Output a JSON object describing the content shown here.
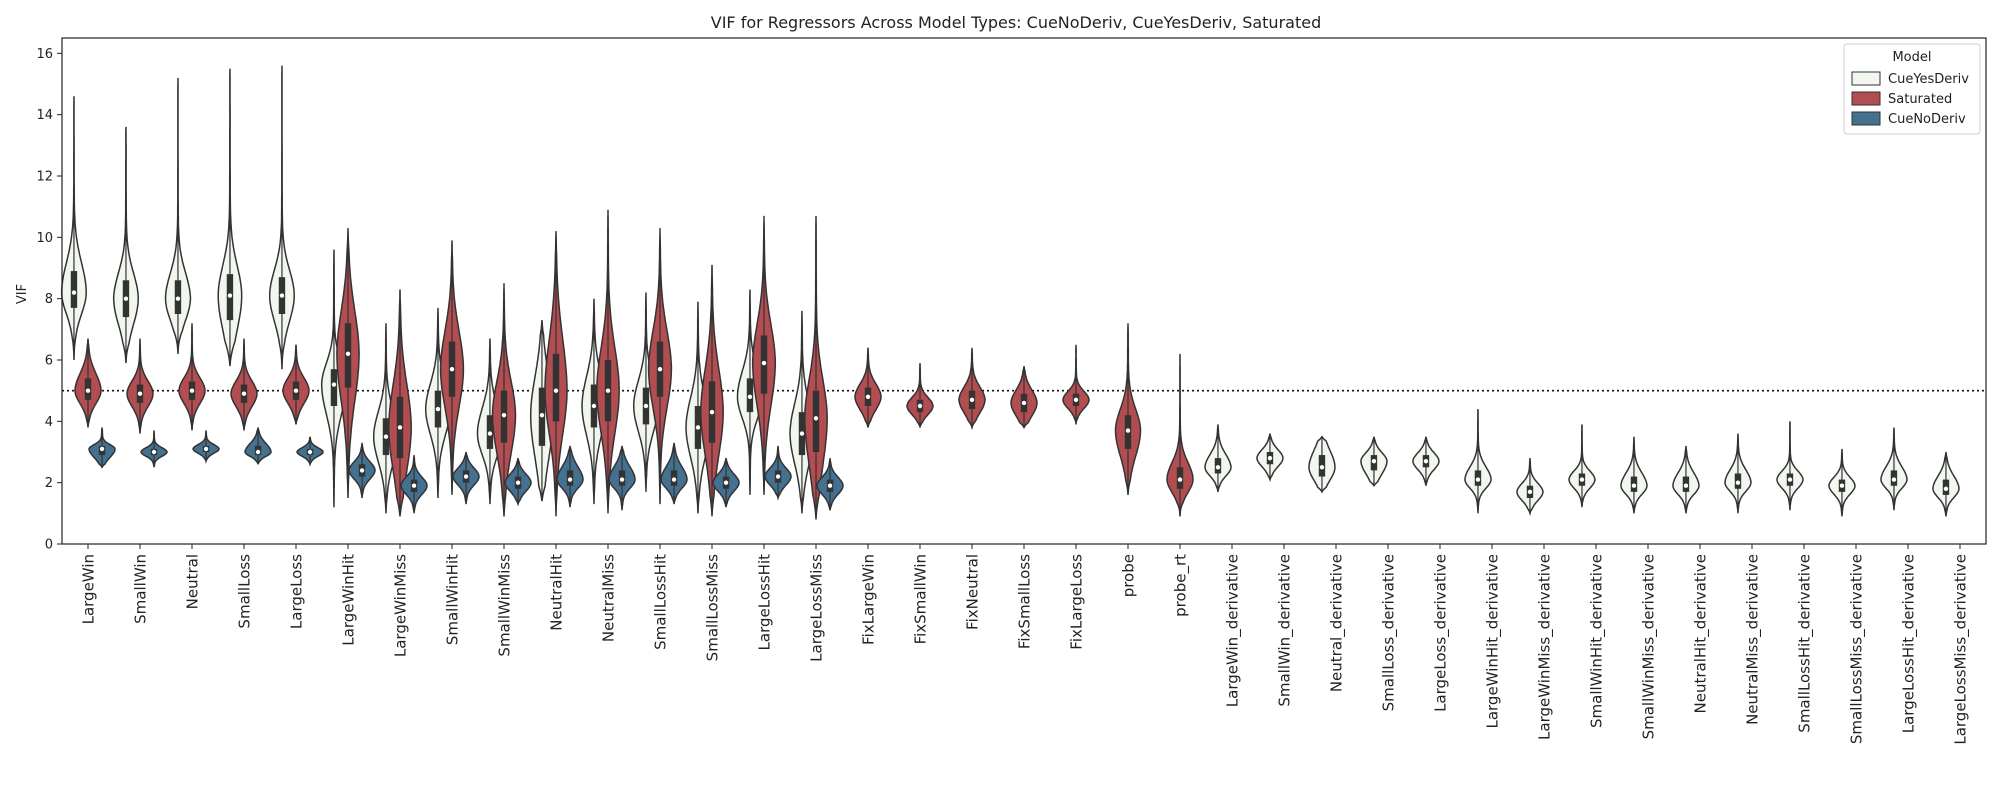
{
  "chart_data": {
    "type": "violin",
    "title": "VIF for Regressors Across Model Types: CueNoDeriv, CueYesDeriv, Saturated",
    "xlabel": "",
    "ylabel": "VIF",
    "ylim": [
      0,
      16.5
    ],
    "yticks": [
      0,
      2,
      4,
      6,
      8,
      10,
      12,
      14,
      16
    ],
    "reference_line": {
      "y": 5,
      "style": "dotted"
    },
    "legend": {
      "title": "Model",
      "placement": "top-right",
      "entries": [
        "CueYesDeriv",
        "Saturated",
        "CueNoDeriv"
      ]
    },
    "colors": {
      "CueYesDeriv": "#f1f7ee",
      "Saturated": "#b24d51",
      "CueNoDeriv": "#44718f",
      "outline": "#333333"
    },
    "categories": [
      "LargeWin",
      "SmallWin",
      "Neutral",
      "SmallLoss",
      "LargeLoss",
      "LargeWinHit",
      "LargeWinMiss",
      "SmallWinHit",
      "SmallWinMiss",
      "NeutralHit",
      "NeutralMiss",
      "SmallLossHit",
      "SmallLossMiss",
      "LargeLossHit",
      "LargeLossMiss",
      "FixLargeWin",
      "FixSmallWin",
      "FixNeutral",
      "FixSmallLoss",
      "FixLargeLoss",
      "probe",
      "probe_rt",
      "LargeWin_derivative",
      "SmallWin_derivative",
      "Neutral_derivative",
      "SmallLoss_derivative",
      "LargeLoss_derivative",
      "LargeWinHit_derivative",
      "LargeWinMiss_derivative",
      "SmallWinHit_derivative",
      "SmallWinMiss_derivative",
      "NeutralHit_derivative",
      "NeutralMiss_derivative",
      "SmallLossHit_derivative",
      "SmallLossMiss_derivative",
      "LargeLossHit_derivative",
      "LargeLossMiss_derivative"
    ],
    "series": [
      {
        "name": "CueYesDeriv",
        "data": [
          {
            "category": "LargeWin",
            "min": 6.0,
            "q1": 7.7,
            "median": 8.2,
            "q3": 8.9,
            "max": 14.6
          },
          {
            "category": "SmallWin",
            "min": 5.9,
            "q1": 7.4,
            "median": 8.0,
            "q3": 8.6,
            "max": 13.6
          },
          {
            "category": "Neutral",
            "min": 6.2,
            "q1": 7.5,
            "median": 8.0,
            "q3": 8.6,
            "max": 15.2
          },
          {
            "category": "SmallLoss",
            "min": 5.8,
            "q1": 7.3,
            "median": 8.1,
            "q3": 8.8,
            "max": 15.5
          },
          {
            "category": "LargeLoss",
            "min": 5.7,
            "q1": 7.5,
            "median": 8.1,
            "q3": 8.7,
            "max": 15.6
          },
          {
            "category": "LargeWinHit",
            "min": 1.2,
            "q1": 4.5,
            "median": 5.2,
            "q3": 5.7,
            "max": 9.6
          },
          {
            "category": "LargeWinMiss",
            "min": 1.0,
            "q1": 2.9,
            "median": 3.5,
            "q3": 4.1,
            "max": 7.2
          },
          {
            "category": "SmallWinHit",
            "min": 1.5,
            "q1": 3.8,
            "median": 4.4,
            "q3": 5.0,
            "max": 7.7
          },
          {
            "category": "SmallWinMiss",
            "min": 1.3,
            "q1": 3.1,
            "median": 3.6,
            "q3": 4.2,
            "max": 6.7
          },
          {
            "category": "NeutralHit",
            "min": 1.4,
            "q1": 3.2,
            "median": 4.2,
            "q3": 5.1,
            "max": 7.3
          },
          {
            "category": "NeutralMiss",
            "min": 1.3,
            "q1": 3.8,
            "median": 4.5,
            "q3": 5.2,
            "max": 8.0
          },
          {
            "category": "SmallLossHit",
            "min": 1.7,
            "q1": 3.9,
            "median": 4.5,
            "q3": 5.1,
            "max": 8.2
          },
          {
            "category": "SmallLossMiss",
            "min": 1.0,
            "q1": 3.1,
            "median": 3.8,
            "q3": 4.5,
            "max": 7.9
          },
          {
            "category": "LargeLossHit",
            "min": 1.6,
            "q1": 4.3,
            "median": 4.8,
            "q3": 5.4,
            "max": 8.3
          },
          {
            "category": "LargeLossMiss",
            "min": 1.0,
            "q1": 2.9,
            "median": 3.6,
            "q3": 4.3,
            "max": 7.6
          },
          {
            "category": "LargeWin_derivative",
            "min": 1.7,
            "q1": 2.3,
            "median": 2.5,
            "q3": 2.8,
            "max": 3.9
          },
          {
            "category": "SmallWin_derivative",
            "min": 2.1,
            "q1": 2.6,
            "median": 2.8,
            "q3": 3.0,
            "max": 3.6
          },
          {
            "category": "Neutral_derivative",
            "min": 1.7,
            "q1": 2.2,
            "median": 2.5,
            "q3": 2.9,
            "max": 3.5
          },
          {
            "category": "SmallLoss_derivative",
            "min": 1.9,
            "q1": 2.4,
            "median": 2.7,
            "q3": 2.9,
            "max": 3.5
          },
          {
            "category": "LargeLoss_derivative",
            "min": 1.9,
            "q1": 2.5,
            "median": 2.7,
            "q3": 2.9,
            "max": 3.5
          },
          {
            "category": "LargeWinHit_derivative",
            "min": 1.0,
            "q1": 1.9,
            "median": 2.1,
            "q3": 2.4,
            "max": 4.4
          },
          {
            "category": "LargeWinMiss_derivative",
            "min": 1.0,
            "q1": 1.5,
            "median": 1.7,
            "q3": 1.9,
            "max": 2.8
          },
          {
            "category": "SmallWinHit_derivative",
            "min": 1.2,
            "q1": 1.9,
            "median": 2.1,
            "q3": 2.3,
            "max": 3.9
          },
          {
            "category": "SmallWinMiss_derivative",
            "min": 1.0,
            "q1": 1.7,
            "median": 1.9,
            "q3": 2.2,
            "max": 3.5
          },
          {
            "category": "NeutralHit_derivative",
            "min": 1.0,
            "q1": 1.7,
            "median": 1.9,
            "q3": 2.2,
            "max": 3.2
          },
          {
            "category": "NeutralMiss_derivative",
            "min": 1.0,
            "q1": 1.8,
            "median": 2.0,
            "q3": 2.3,
            "max": 3.6
          },
          {
            "category": "SmallLossHit_derivative",
            "min": 1.1,
            "q1": 1.9,
            "median": 2.1,
            "q3": 2.3,
            "max": 4.0
          },
          {
            "category": "SmallLossMiss_derivative",
            "min": 0.9,
            "q1": 1.7,
            "median": 1.9,
            "q3": 2.1,
            "max": 3.1
          },
          {
            "category": "LargeLossHit_derivative",
            "min": 1.1,
            "q1": 1.9,
            "median": 2.1,
            "q3": 2.4,
            "max": 3.8
          },
          {
            "category": "LargeLossMiss_derivative",
            "min": 0.9,
            "q1": 1.6,
            "median": 1.8,
            "q3": 2.1,
            "max": 3.0
          }
        ]
      },
      {
        "name": "Saturated",
        "data": [
          {
            "category": "LargeWin",
            "min": 3.8,
            "q1": 4.7,
            "median": 5.0,
            "q3": 5.4,
            "max": 6.7
          },
          {
            "category": "SmallWin",
            "min": 3.6,
            "q1": 4.6,
            "median": 4.9,
            "q3": 5.2,
            "max": 6.7
          },
          {
            "category": "Neutral",
            "min": 3.7,
            "q1": 4.7,
            "median": 5.0,
            "q3": 5.3,
            "max": 7.2
          },
          {
            "category": "SmallLoss",
            "min": 3.7,
            "q1": 4.6,
            "median": 4.9,
            "q3": 5.2,
            "max": 6.7
          },
          {
            "category": "LargeLoss",
            "min": 3.9,
            "q1": 4.7,
            "median": 5.0,
            "q3": 5.3,
            "max": 6.5
          },
          {
            "category": "LargeWinHit",
            "min": 1.5,
            "q1": 5.1,
            "median": 6.2,
            "q3": 7.2,
            "max": 10.3
          },
          {
            "category": "LargeWinMiss",
            "min": 0.9,
            "q1": 2.8,
            "median": 3.8,
            "q3": 4.8,
            "max": 8.3
          },
          {
            "category": "SmallWinHit",
            "min": 1.6,
            "q1": 4.8,
            "median": 5.7,
            "q3": 6.6,
            "max": 9.9
          },
          {
            "category": "SmallWinMiss",
            "min": 0.9,
            "q1": 3.3,
            "median": 4.2,
            "q3": 5.0,
            "max": 8.5
          },
          {
            "category": "NeutralHit",
            "min": 0.9,
            "q1": 4.0,
            "median": 5.0,
            "q3": 6.2,
            "max": 10.2
          },
          {
            "category": "NeutralMiss",
            "min": 1.0,
            "q1": 4.0,
            "median": 5.0,
            "q3": 6.0,
            "max": 10.9
          },
          {
            "category": "SmallLossHit",
            "min": 1.3,
            "q1": 4.8,
            "median": 5.7,
            "q3": 6.6,
            "max": 10.3
          },
          {
            "category": "SmallLossMiss",
            "min": 0.9,
            "q1": 3.3,
            "median": 4.3,
            "q3": 5.3,
            "max": 9.1
          },
          {
            "category": "LargeLossHit",
            "min": 1.6,
            "q1": 4.9,
            "median": 5.9,
            "q3": 6.8,
            "max": 10.7
          },
          {
            "category": "LargeLossMiss",
            "min": 0.8,
            "q1": 3.0,
            "median": 4.1,
            "q3": 5.0,
            "max": 10.7
          },
          {
            "category": "FixLargeWin",
            "min": 3.8,
            "q1": 4.5,
            "median": 4.8,
            "q3": 5.1,
            "max": 6.4
          },
          {
            "category": "FixSmallWin",
            "min": 3.8,
            "q1": 4.3,
            "median": 4.5,
            "q3": 4.7,
            "max": 5.9
          },
          {
            "category": "FixNeutral",
            "min": 3.8,
            "q1": 4.4,
            "median": 4.7,
            "q3": 5.0,
            "max": 6.4
          },
          {
            "category": "FixSmallLoss",
            "min": 3.8,
            "q1": 4.3,
            "median": 4.6,
            "q3": 4.9,
            "max": 5.8
          },
          {
            "category": "FixLargeLoss",
            "min": 3.9,
            "q1": 4.5,
            "median": 4.7,
            "q3": 4.9,
            "max": 6.5
          },
          {
            "category": "probe",
            "min": 1.6,
            "q1": 3.1,
            "median": 3.7,
            "q3": 4.2,
            "max": 7.2
          },
          {
            "category": "probe_rt",
            "min": 0.9,
            "q1": 1.8,
            "median": 2.1,
            "q3": 2.5,
            "max": 6.2
          }
        ]
      },
      {
        "name": "CueNoDeriv",
        "data": [
          {
            "category": "LargeWin",
            "min": 2.5,
            "q1": 2.9,
            "median": 3.1,
            "q3": 3.2,
            "max": 3.8
          },
          {
            "category": "SmallWin",
            "min": 2.5,
            "q1": 2.9,
            "median": 3.0,
            "q3": 3.1,
            "max": 3.7
          },
          {
            "category": "Neutral",
            "min": 2.7,
            "q1": 3.0,
            "median": 3.1,
            "q3": 3.2,
            "max": 3.7
          },
          {
            "category": "SmallLoss",
            "min": 2.6,
            "q1": 2.9,
            "median": 3.0,
            "q3": 3.2,
            "max": 3.8
          },
          {
            "category": "LargeLoss",
            "min": 2.6,
            "q1": 2.9,
            "median": 3.0,
            "q3": 3.1,
            "max": 3.5
          },
          {
            "category": "LargeWinHit",
            "min": 1.5,
            "q1": 2.2,
            "median": 2.4,
            "q3": 2.6,
            "max": 3.3
          },
          {
            "category": "LargeWinMiss",
            "min": 1.0,
            "q1": 1.7,
            "median": 1.9,
            "q3": 2.1,
            "max": 2.9
          },
          {
            "category": "SmallWinHit",
            "min": 1.3,
            "q1": 2.0,
            "median": 2.2,
            "q3": 2.4,
            "max": 3.0
          },
          {
            "category": "SmallWinMiss",
            "min": 1.3,
            "q1": 1.8,
            "median": 2.0,
            "q3": 2.2,
            "max": 2.8
          },
          {
            "category": "NeutralHit",
            "min": 1.2,
            "q1": 1.9,
            "median": 2.1,
            "q3": 2.4,
            "max": 3.2
          },
          {
            "category": "NeutralMiss",
            "min": 1.1,
            "q1": 1.9,
            "median": 2.1,
            "q3": 2.4,
            "max": 3.2
          },
          {
            "category": "SmallLossHit",
            "min": 1.3,
            "q1": 1.9,
            "median": 2.1,
            "q3": 2.4,
            "max": 3.3
          },
          {
            "category": "SmallLossMiss",
            "min": 1.2,
            "q1": 1.8,
            "median": 2.0,
            "q3": 2.2,
            "max": 2.8
          },
          {
            "category": "LargeLossHit",
            "min": 1.5,
            "q1": 2.0,
            "median": 2.2,
            "q3": 2.4,
            "max": 3.2
          },
          {
            "category": "LargeLossMiss",
            "min": 1.1,
            "q1": 1.7,
            "median": 1.9,
            "q3": 2.1,
            "max": 2.8
          }
        ]
      }
    ]
  }
}
